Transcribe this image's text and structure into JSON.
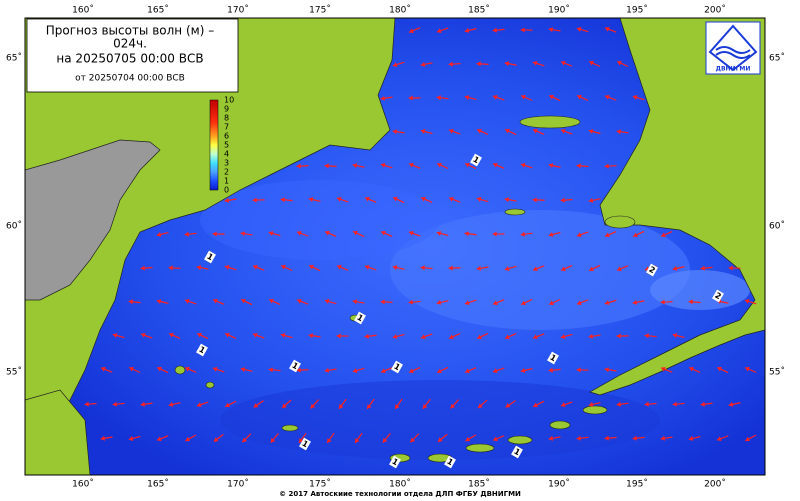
{
  "title_box": {
    "line1": "Прогноз высоты волн (м) –",
    "line2": "024ч.",
    "line3": "на 20250705 00:00 ВСВ",
    "line4": "от 20250704 00:00 ВСВ"
  },
  "colorbar": {
    "labels": [
      "10",
      "9",
      "8",
      "7",
      "6",
      "5",
      "4",
      "3",
      "2",
      "1",
      "0"
    ]
  },
  "longitudes": [
    "160˚",
    "165˚",
    "170˚",
    "175˚",
    "180˚",
    "185˚",
    "190˚",
    "195˚",
    "200˚"
  ],
  "latitudes": [
    "65˚",
    "60˚",
    "55˚"
  ],
  "contour_labels": [
    "1",
    "1",
    "1",
    "1",
    "1",
    "1",
    "1",
    "1",
    "1",
    "1",
    "1",
    "2",
    "2"
  ],
  "logo": {
    "text": "ДВНИГМИ"
  },
  "footer": {
    "text": "© 2017 Автоскиие технологии отдела ДЛП ФГБУ ДВНИГМИ"
  }
}
